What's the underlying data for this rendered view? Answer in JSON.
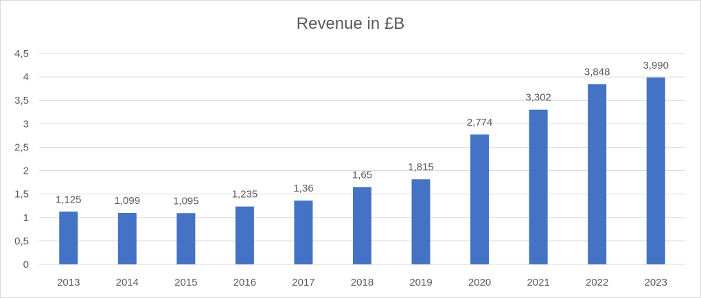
{
  "chart_data": {
    "type": "bar",
    "title": "Revenue in £B",
    "xlabel": "",
    "ylabel": "",
    "categories": [
      "2013",
      "2014",
      "2015",
      "2016",
      "2017",
      "2018",
      "2019",
      "2020",
      "2021",
      "2022",
      "2023"
    ],
    "values": [
      1.125,
      1.099,
      1.095,
      1.235,
      1.36,
      1.65,
      1.815,
      2.774,
      3.302,
      3.848,
      3.99
    ],
    "data_labels": [
      "1,125",
      "1,099",
      "1,095",
      "1,235",
      "1,36",
      "1,65",
      "1,815",
      "2,774",
      "3,302",
      "3,848",
      "3,990"
    ],
    "ylim": [
      0,
      4.5
    ],
    "yticks": [
      0,
      0.5,
      1,
      1.5,
      2,
      2.5,
      3,
      3.5,
      4,
      4.5
    ],
    "ytick_labels": [
      "0",
      "0,5",
      "1",
      "1,5",
      "2",
      "2,5",
      "3",
      "3,5",
      "4",
      "4,5"
    ],
    "grid": true,
    "legend": "none",
    "bar_color": "#4472c4",
    "grid_color": "#d9d9d9",
    "text_color": "#595959"
  }
}
